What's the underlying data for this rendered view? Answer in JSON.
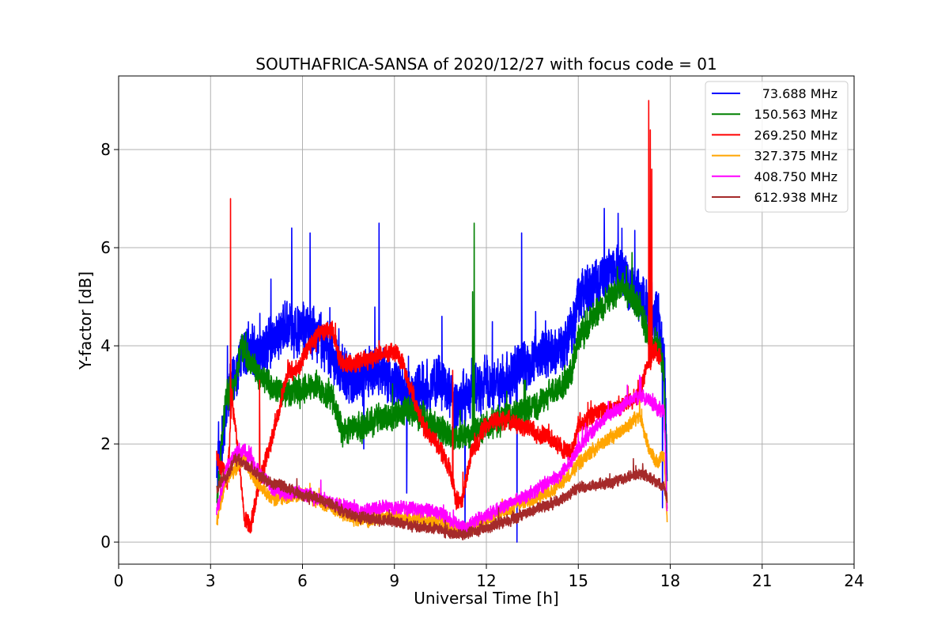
{
  "chart_data": {
    "type": "line",
    "title": "SOUTHAFRICA-SANSA of 2020/12/27 with focus code = 01",
    "xlabel": "Universal Time [h]",
    "ylabel": "Y-factor [dB]",
    "xlim": [
      0,
      24
    ],
    "ylim": [
      -0.45,
      9.5
    ],
    "xticks": [
      0,
      3,
      6,
      9,
      12,
      15,
      18,
      21,
      24
    ],
    "yticks": [
      0,
      2,
      4,
      6,
      8
    ],
    "grid": true,
    "legend_position": "top-right",
    "series": [
      {
        "name": "73.688 MHz",
        "color": "#0000ff",
        "noise": 0.45,
        "x": [
          3.2,
          3.5,
          3.7,
          4.0,
          4.3,
          4.6,
          5.0,
          5.5,
          6.0,
          6.5,
          7.0,
          7.5,
          8.0,
          8.5,
          9.0,
          9.5,
          10.0,
          10.5,
          11.0,
          11.5,
          12.0,
          12.5,
          13.0,
          13.5,
          14.0,
          14.5,
          14.8,
          15.0,
          15.5,
          16.0,
          16.5,
          17.0,
          17.3,
          17.6,
          17.8,
          17.9
        ],
        "y": [
          1.4,
          2.5,
          3.3,
          3.8,
          3.9,
          3.9,
          4.1,
          4.4,
          4.3,
          4.2,
          3.8,
          3.3,
          3.4,
          3.5,
          3.3,
          3.0,
          3.2,
          3.3,
          2.7,
          3.2,
          3.2,
          3.2,
          3.5,
          3.7,
          3.9,
          3.9,
          4.3,
          4.9,
          5.2,
          5.6,
          5.5,
          5.0,
          4.8,
          4.6,
          3.6,
          1.6
        ],
        "spikes": [
          [
            3.55,
            4.0
          ],
          [
            5.65,
            6.4
          ],
          [
            6.25,
            6.3
          ],
          [
            8.5,
            6.5
          ],
          [
            10.55,
            4.6
          ],
          [
            13.15,
            6.3
          ],
          [
            15.85,
            6.8
          ],
          [
            16.3,
            6.7
          ],
          [
            11.3,
            0.1
          ],
          [
            13.0,
            0.0
          ],
          [
            9.4,
            1.0
          ],
          [
            8.0,
            1.9
          ],
          [
            17.75,
            0.7
          ]
        ]
      },
      {
        "name": "150.563 MHz",
        "color": "#008000",
        "noise": 0.25,
        "x": [
          3.2,
          3.5,
          3.8,
          4.0,
          4.5,
          5.0,
          5.5,
          6.0,
          6.5,
          7.0,
          7.3,
          7.6,
          8.0,
          8.5,
          9.0,
          9.5,
          10.0,
          10.5,
          11.0,
          11.5,
          12.0,
          12.5,
          13.0,
          13.5,
          14.0,
          14.5,
          14.8,
          15.0,
          15.5,
          16.0,
          16.5,
          17.0,
          17.3,
          17.6,
          17.8,
          17.9
        ],
        "y": [
          0.7,
          3.0,
          3.2,
          4.0,
          3.4,
          3.2,
          3.0,
          3.1,
          3.2,
          2.9,
          2.2,
          2.3,
          2.4,
          2.5,
          2.6,
          2.7,
          2.5,
          2.3,
          2.1,
          2.2,
          2.4,
          2.5,
          2.6,
          2.7,
          3.0,
          3.2,
          3.5,
          4.2,
          4.6,
          5.0,
          5.2,
          4.8,
          4.2,
          4.0,
          3.5,
          0.5
        ],
        "spikes": [
          [
            11.6,
            6.5
          ],
          [
            11.55,
            5.1
          ],
          [
            16.75,
            5.9
          ]
        ]
      },
      {
        "name": "269.250 MHz",
        "color": "#ff0000",
        "noise": 0.16,
        "x": [
          3.2,
          3.4,
          3.55,
          3.7,
          3.9,
          4.1,
          4.3,
          4.6,
          4.9,
          5.2,
          5.5,
          5.9,
          6.2,
          6.6,
          7.0,
          7.2,
          7.6,
          8.0,
          8.5,
          9.0,
          9.3,
          9.6,
          10.0,
          10.4,
          10.8,
          11.0,
          11.2,
          11.5,
          12.0,
          12.5,
          13.0,
          13.5,
          14.0,
          14.5,
          14.8,
          15.0,
          15.5,
          16.0,
          16.5,
          17.0,
          17.2,
          17.5,
          17.7
        ],
        "y": [
          1.7,
          1.5,
          1.2,
          3.0,
          1.8,
          0.5,
          0.3,
          1.2,
          1.9,
          2.6,
          3.4,
          3.6,
          4.0,
          4.3,
          4.3,
          3.7,
          3.6,
          3.7,
          3.8,
          3.9,
          3.6,
          3.0,
          2.3,
          2.0,
          1.5,
          0.9,
          0.8,
          1.8,
          2.4,
          2.5,
          2.4,
          2.3,
          2.1,
          1.9,
          1.8,
          2.4,
          2.6,
          2.7,
          2.8,
          3.0,
          3.5,
          3.9,
          3.7
        ],
        "spikes": [
          [
            3.65,
            7.0
          ],
          [
            17.3,
            9.0
          ],
          [
            17.35,
            8.4
          ],
          [
            17.4,
            7.6
          ],
          [
            10.9,
            3.5
          ],
          [
            4.6,
            3.3
          ],
          [
            16.95,
            3.3
          ]
        ]
      },
      {
        "name": "327.375 MHz",
        "color": "#ffa500",
        "noise": 0.12,
        "x": [
          3.2,
          3.5,
          3.8,
          4.1,
          4.5,
          5.0,
          5.5,
          6.0,
          6.5,
          7.0,
          7.5,
          8.0,
          8.5,
          9.0,
          9.5,
          10.0,
          10.5,
          11.0,
          11.5,
          12.0,
          12.5,
          13.0,
          13.5,
          14.0,
          14.5,
          15.0,
          15.5,
          16.0,
          16.5,
          17.0,
          17.3,
          17.6,
          17.8,
          17.9
        ],
        "y": [
          0.4,
          1.3,
          1.5,
          1.7,
          1.2,
          0.9,
          0.9,
          1.0,
          0.85,
          0.7,
          0.5,
          0.45,
          0.5,
          0.55,
          0.5,
          0.45,
          0.4,
          0.25,
          0.3,
          0.45,
          0.6,
          0.75,
          0.85,
          1.0,
          1.2,
          1.6,
          1.9,
          2.1,
          2.3,
          2.6,
          1.9,
          1.6,
          1.8,
          0.3
        ],
        "spikes": [
          [
            17.0,
            3.0
          ]
        ]
      },
      {
        "name": "408.750 MHz",
        "color": "#ff00ff",
        "noise": 0.12,
        "x": [
          3.2,
          3.5,
          3.8,
          4.1,
          4.5,
          5.0,
          5.5,
          6.0,
          6.5,
          7.0,
          7.5,
          8.0,
          8.5,
          9.0,
          9.5,
          10.0,
          10.5,
          11.0,
          11.3,
          11.5,
          12.0,
          12.5,
          13.0,
          13.5,
          14.0,
          14.5,
          15.0,
          15.5,
          16.0,
          16.5,
          17.0,
          17.3,
          17.6,
          17.8,
          17.9
        ],
        "y": [
          0.6,
          1.5,
          1.8,
          1.9,
          1.5,
          1.1,
          1.0,
          1.0,
          0.9,
          0.8,
          0.7,
          0.65,
          0.7,
          0.7,
          0.7,
          0.65,
          0.6,
          0.4,
          0.25,
          0.4,
          0.55,
          0.7,
          0.85,
          1.0,
          1.2,
          1.4,
          1.9,
          2.3,
          2.6,
          2.8,
          3.0,
          2.9,
          2.7,
          2.7,
          0.6
        ],
        "spikes": [
          [
            16.6,
            3.2
          ],
          [
            17.0,
            3.4
          ]
        ]
      },
      {
        "name": "612.938 MHz",
        "color": "#a52a2a",
        "noise": 0.1,
        "x": [
          3.2,
          3.5,
          3.8,
          4.1,
          4.5,
          5.0,
          5.5,
          6.0,
          6.5,
          7.0,
          7.5,
          8.0,
          8.5,
          9.0,
          9.5,
          10.0,
          10.5,
          11.0,
          11.5,
          12.0,
          12.5,
          13.0,
          13.5,
          14.0,
          14.5,
          15.0,
          15.5,
          16.0,
          16.5,
          17.0,
          17.3,
          17.6,
          17.8,
          17.9
        ],
        "y": [
          1.1,
          1.3,
          1.7,
          1.6,
          1.4,
          1.2,
          1.1,
          0.95,
          0.9,
          0.75,
          0.55,
          0.5,
          0.45,
          0.4,
          0.35,
          0.3,
          0.25,
          0.15,
          0.2,
          0.3,
          0.4,
          0.5,
          0.65,
          0.75,
          0.9,
          1.1,
          1.15,
          1.2,
          1.3,
          1.4,
          1.3,
          1.2,
          1.1,
          0.9
        ],
        "spikes": [
          [
            16.8,
            1.7
          ],
          [
            17.1,
            1.6
          ]
        ]
      }
    ]
  }
}
